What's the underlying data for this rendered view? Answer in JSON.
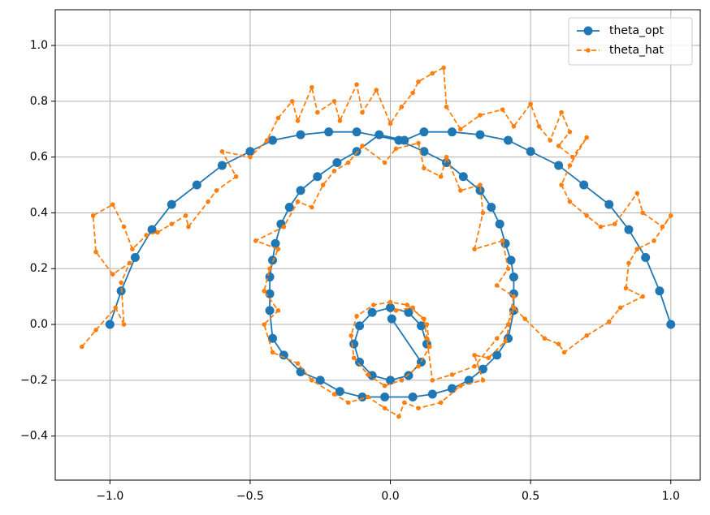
{
  "chart_data": {
    "type": "line",
    "xlim": [
      -1.195,
      1.105
    ],
    "ylim": [
      -0.558,
      1.128
    ],
    "xticks": [
      {
        "value": -1.0,
        "label": "−1.0"
      },
      {
        "value": -0.5,
        "label": "−0.5"
      },
      {
        "value": 0,
        "label": "0.0"
      },
      {
        "value": 0.5,
        "label": "0.5"
      },
      {
        "value": 1.0,
        "label": "1.0"
      }
    ],
    "yticks": [
      {
        "value": -0.4,
        "label": "−0.4"
      },
      {
        "value": -0.2,
        "label": "−0.2"
      },
      {
        "value": 0,
        "label": "0.0"
      },
      0.2,
      0.4,
      0.6,
      0.8,
      {
        "value": 1.0,
        "label": "1.0"
      }
    ],
    "grid": true,
    "legend": "upper right",
    "series": [
      {
        "name": "theta_opt",
        "color": "#1f77b4",
        "marker": "large",
        "dashed": false,
        "x": [
          1,
          0.96,
          0.91,
          0.85,
          0.78,
          0.69,
          0.6,
          0.5,
          0.42,
          0.32,
          0.22,
          0.12,
          0.05,
          -0.04,
          -0.12,
          -0.19,
          -0.26,
          -0.32,
          -0.36,
          -0.39,
          -0.41,
          -0.42,
          -0.43,
          -0.43,
          -0.43,
          -0.42,
          -0.38,
          -0.32,
          -0.25,
          -0.18,
          -0.1,
          -0.02,
          0.08,
          0.15,
          0.22,
          0.28,
          0.33,
          0.38,
          0.42,
          0.44,
          0.44,
          0.44,
          0.43,
          0.41,
          0.39,
          0.36,
          0.32,
          0.26,
          0.2,
          0.12,
          0.03,
          -0.12,
          -0.22,
          -0.32,
          -0.42,
          -0.5,
          -0.6,
          -0.69,
          -0.78,
          -0.85,
          -0.91,
          -0.96,
          -1,
          null,
          0.13,
          0.11,
          0.065,
          0,
          -0.065,
          -0.11,
          -0.13,
          -0.11,
          -0.065,
          0,
          0.065,
          0.11,
          0.005
        ],
        "values": [
          0,
          0.12,
          0.24,
          0.34,
          0.43,
          0.5,
          0.57,
          0.62,
          0.66,
          0.68,
          0.69,
          0.69,
          0.66,
          0.68,
          0.62,
          0.58,
          0.53,
          0.48,
          0.42,
          0.36,
          0.29,
          0.23,
          0.17,
          0.11,
          0.05,
          -0.05,
          -0.11,
          -0.17,
          -0.2,
          -0.24,
          -0.26,
          -0.26,
          -0.26,
          -0.25,
          -0.23,
          -0.2,
          -0.16,
          -0.11,
          -0.05,
          0.05,
          0.11,
          0.17,
          0.23,
          0.29,
          0.36,
          0.42,
          0.48,
          0.53,
          0.58,
          0.62,
          0.66,
          0.69,
          0.69,
          0.68,
          0.66,
          0.62,
          0.57,
          0.5,
          0.43,
          0.34,
          0.24,
          0.12,
          0,
          null,
          -0.07,
          -0.005,
          0.043,
          0.06,
          0.043,
          -0.005,
          -0.07,
          -0.135,
          -0.183,
          -0.2,
          -0.183,
          -0.135,
          0.02
        ]
      },
      {
        "name": "theta_hat",
        "color": "#ff7f0e",
        "marker": "small",
        "dashed": true,
        "x": [
          -1.1,
          -1.05,
          -0.98,
          -0.95,
          -0.96,
          -0.93,
          -0.99,
          -1.05,
          -1.06,
          -0.99,
          -0.95,
          -0.92,
          -0.87,
          -0.83,
          -0.78,
          -0.73,
          -0.72,
          -0.65,
          -0.62,
          -0.55,
          -0.6,
          -0.5,
          -0.44,
          -0.4,
          -0.35,
          -0.33,
          -0.28,
          -0.26,
          -0.2,
          -0.18,
          -0.12,
          -0.1,
          -0.05,
          0.0,
          0.04,
          0.08,
          0.1,
          0.15,
          0.19,
          0.2,
          0.25,
          0.32,
          0.4,
          0.44,
          0.5,
          0.53,
          0.57,
          0.61,
          0.64,
          0.6,
          0.65,
          0.7,
          0.64,
          0.61,
          0.64,
          0.7,
          0.75,
          0.8,
          0.88,
          0.9,
          0.97,
          1.0,
          0.94,
          0.88,
          0.85,
          0.84,
          0.9,
          0.82,
          0.78,
          0.7,
          0.62,
          0.6,
          0.55,
          0.48,
          0.44,
          0.41,
          0.35,
          0.3,
          0.33,
          0.25,
          0.18,
          0.1,
          0.05,
          0.03,
          -0.02,
          -0.08,
          -0.15,
          -0.2,
          -0.28,
          -0.33,
          -0.42,
          -0.45,
          -0.4,
          -0.45,
          -0.43,
          -0.4,
          -0.48,
          -0.38,
          -0.33,
          -0.28,
          -0.24,
          -0.2,
          -0.15,
          -0.1,
          -0.02,
          0.02,
          0.1,
          0.12,
          0.18,
          0.2,
          0.25,
          0.32,
          0.33,
          0.3,
          0.4,
          0.42,
          0.38,
          0.44,
          0.42,
          0.38,
          0.3,
          0.22,
          0.15,
          0.13,
          0.12,
          0.06,
          0.0,
          -0.06,
          -0.12,
          -0.14,
          -0.13,
          -0.08,
          -0.02,
          0.04,
          0.1,
          0.14,
          0.13,
          0.08,
          0.02
        ],
        "values": [
          -0.08,
          -0.02,
          0.06,
          0.0,
          0.15,
          0.22,
          0.18,
          0.26,
          0.39,
          0.43,
          0.35,
          0.27,
          0.32,
          0.33,
          0.36,
          0.39,
          0.35,
          0.44,
          0.48,
          0.53,
          0.62,
          0.6,
          0.66,
          0.74,
          0.8,
          0.73,
          0.85,
          0.76,
          0.8,
          0.73,
          0.86,
          0.76,
          0.84,
          0.72,
          0.78,
          0.83,
          0.87,
          0.9,
          0.92,
          0.78,
          0.7,
          0.75,
          0.77,
          0.71,
          0.79,
          0.71,
          0.66,
          0.76,
          0.69,
          0.64,
          0.6,
          0.67,
          0.57,
          0.5,
          0.44,
          0.39,
          0.35,
          0.36,
          0.47,
          0.4,
          0.35,
          0.39,
          0.3,
          0.27,
          0.22,
          0.13,
          0.1,
          0.06,
          0.01,
          -0.04,
          -0.1,
          -0.07,
          -0.05,
          0.02,
          0.06,
          -0.06,
          -0.12,
          -0.11,
          -0.2,
          -0.22,
          -0.28,
          -0.3,
          -0.28,
          -0.33,
          -0.3,
          -0.26,
          -0.28,
          -0.25,
          -0.2,
          -0.14,
          -0.1,
          0.0,
          0.05,
          0.12,
          0.2,
          0.27,
          0.3,
          0.35,
          0.44,
          0.42,
          0.5,
          0.55,
          0.58,
          0.64,
          0.58,
          0.63,
          0.65,
          0.56,
          0.53,
          0.6,
          0.48,
          0.5,
          0.4,
          0.27,
          0.3,
          0.2,
          0.14,
          0.1,
          0.0,
          -0.05,
          -0.15,
          -0.18,
          -0.2,
          -0.05,
          0.02,
          0.07,
          0.08,
          0.07,
          0.03,
          -0.04,
          -0.12,
          -0.18,
          -0.22,
          -0.2,
          -0.15,
          -0.08,
          0.0,
          0.06,
          0.05
        ]
      }
    ]
  }
}
